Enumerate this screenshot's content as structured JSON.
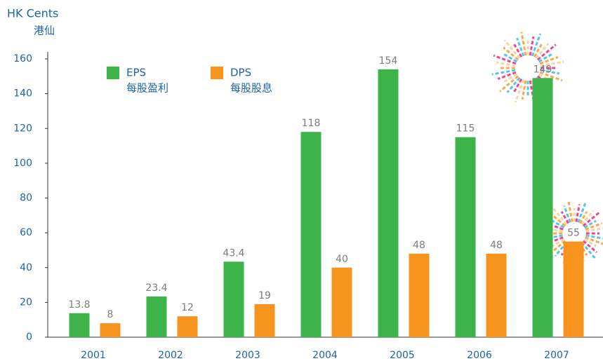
{
  "chart_data": {
    "type": "bar",
    "y_label": "HK Cents",
    "y_label_zh": "港仙",
    "categories": [
      "2001",
      "2002",
      "2003",
      "2004",
      "2005",
      "2006",
      "2007"
    ],
    "series": [
      {
        "name": "EPS",
        "name_zh": "每股盈利",
        "color": "#3cb44a",
        "values": [
          13.8,
          23.4,
          43.4,
          118,
          154,
          115,
          149
        ]
      },
      {
        "name": "DPS",
        "name_zh": "每股股息",
        "color": "#f7941d",
        "values": [
          8,
          12,
          19,
          40,
          48,
          48,
          55
        ]
      }
    ],
    "ylim": [
      0,
      160
    ],
    "yticks": [
      0,
      20,
      40,
      60,
      80,
      100,
      120,
      140,
      160
    ],
    "grid": false
  }
}
